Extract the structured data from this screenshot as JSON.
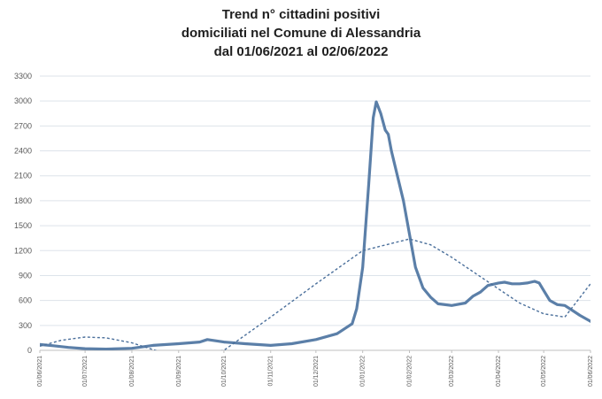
{
  "chart_data": {
    "type": "line",
    "title_lines": [
      "Trend n° cittadini positivi",
      "domiciliati nel Comune di Alessandria",
      "dal 01/06/2021 al 02/06/2022"
    ],
    "xlabel": "",
    "ylabel": "",
    "ylim": [
      0,
      3300
    ],
    "y_ticks": [
      0,
      300,
      600,
      900,
      1200,
      1500,
      1800,
      2100,
      2400,
      2700,
      3000,
      3300
    ],
    "y_tick_labels": [
      "0",
      "300",
      "600",
      "900",
      "1200",
      "1500",
      "1800",
      "2100",
      "2400",
      "2700",
      "3000",
      "3300"
    ],
    "x_ticks": [
      "01/06/2021",
      "01/07/2021",
      "01/08/2021",
      "01/09/2021",
      "01/10/2021",
      "01/11/2021",
      "01/12/2021",
      "01/01/2022",
      "01/02/2022",
      "01/03/2022",
      "01/04/2022",
      "01/05/2022",
      "01/06/2022"
    ],
    "grid": true,
    "legend": false,
    "colors": {
      "series": "#5b7fa8",
      "trend": "#4a6f9b",
      "grid": "#dde3ea",
      "axis": "#bfbfbf"
    },
    "series": [
      {
        "style": "solid",
        "x": [
          "01/06/2021",
          "10/06/2021",
          "20/06/2021",
          "01/07/2021",
          "15/07/2021",
          "01/08/2021",
          "15/08/2021",
          "01/09/2021",
          "15/09/2021",
          "20/09/2021",
          "01/10/2021",
          "15/10/2021",
          "01/11/2021",
          "15/11/2021",
          "01/12/2021",
          "15/12/2021",
          "25/12/2021",
          "28/12/2021",
          "01/01/2022",
          "05/01/2022",
          "08/01/2022",
          "10/01/2022",
          "13/01/2022",
          "16/01/2022",
          "18/01/2022",
          "20/01/2022",
          "24/01/2022",
          "28/01/2022",
          "01/02/2022",
          "05/02/2022",
          "10/02/2022",
          "15/02/2022",
          "20/02/2022",
          "01/03/2022",
          "10/03/2022",
          "15/03/2022",
          "20/03/2022",
          "25/03/2022",
          "01/04/2022",
          "05/04/2022",
          "10/04/2022",
          "15/04/2022",
          "20/04/2022",
          "25/04/2022",
          "28/04/2022",
          "01/05/2022",
          "05/05/2022",
          "10/05/2022",
          "15/05/2022",
          "20/05/2022",
          "25/05/2022",
          "02/06/2022"
        ],
        "y": [
          70,
          55,
          35,
          20,
          15,
          25,
          60,
          80,
          100,
          130,
          100,
          80,
          60,
          80,
          130,
          200,
          320,
          500,
          1000,
          2000,
          2800,
          2990,
          2850,
          2650,
          2600,
          2400,
          2100,
          1800,
          1400,
          1000,
          750,
          640,
          560,
          540,
          570,
          650,
          700,
          780,
          810,
          820,
          800,
          800,
          810,
          830,
          810,
          720,
          600,
          550,
          540,
          480,
          420,
          340
        ]
      },
      {
        "style": "dashed",
        "x": [
          "01/06/2021",
          "15/06/2021",
          "01/07/2021",
          "15/07/2021",
          "01/08/2021",
          "20/08/2021",
          "01/09/2021",
          "01/10/2021",
          "01/11/2021",
          "01/12/2021",
          "01/01/2022",
          "01/02/2022",
          "15/02/2022",
          "01/03/2022",
          "01/04/2022",
          "15/04/2022",
          "01/05/2022",
          "15/05/2022",
          "01/06/2022"
        ],
        "y": [
          50,
          120,
          160,
          150,
          90,
          -20,
          -100,
          0,
          400,
          800,
          1200,
          1340,
          1270,
          1120,
          740,
          570,
          440,
          400,
          800
        ]
      }
    ]
  }
}
